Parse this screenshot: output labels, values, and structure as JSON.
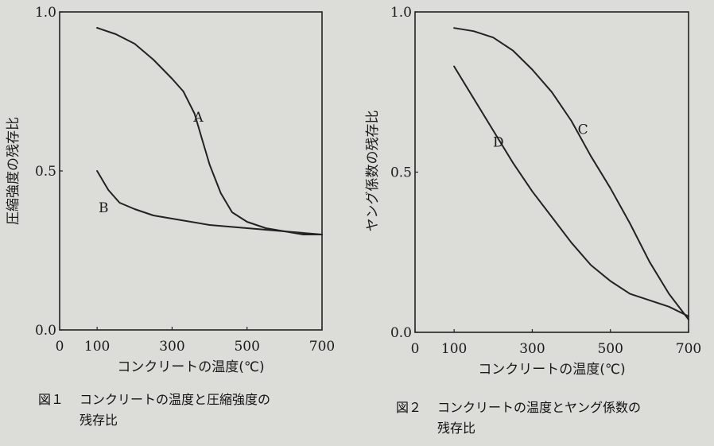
{
  "chart_data": [
    {
      "type": "line",
      "xlabel": "コンクリートの温度(℃)",
      "ylabel": "圧縮強度の残存比",
      "xlim": [
        0,
        700
      ],
      "ylim": [
        0.0,
        1.0
      ],
      "x_ticks": [
        "0",
        "100",
        "300",
        "500",
        "700"
      ],
      "y_ticks": [
        "0.0",
        "0.5",
        "1.0"
      ],
      "grid": false,
      "series": [
        {
          "name": "A",
          "x": [
            100,
            150,
            200,
            250,
            300,
            330,
            360,
            380,
            400,
            430,
            460,
            500,
            550,
            600,
            650,
            700
          ],
          "y": [
            0.95,
            0.93,
            0.9,
            0.85,
            0.79,
            0.75,
            0.68,
            0.6,
            0.52,
            0.43,
            0.37,
            0.34,
            0.32,
            0.31,
            0.3,
            0.3
          ]
        },
        {
          "name": "B",
          "x": [
            100,
            130,
            160,
            200,
            250,
            300,
            400,
            500,
            600,
            700
          ],
          "y": [
            0.5,
            0.44,
            0.4,
            0.38,
            0.36,
            0.35,
            0.33,
            0.32,
            0.31,
            0.3
          ]
        }
      ],
      "caption_num": "図１",
      "caption_line1": "コンクリートの温度と圧縮強度の",
      "caption_line2": "残存比"
    },
    {
      "type": "line",
      "xlabel": "コンクリートの温度(℃)",
      "ylabel": "ヤング係数の残存比",
      "xlim": [
        0,
        700
      ],
      "ylim": [
        0.0,
        1.0
      ],
      "x_ticks": [
        "0",
        "100",
        "300",
        "500",
        "700"
      ],
      "y_ticks": [
        "0.0",
        "0.5",
        "1.0"
      ],
      "grid": false,
      "series": [
        {
          "name": "C",
          "x": [
            100,
            150,
            200,
            250,
            300,
            350,
            400,
            450,
            500,
            550,
            600,
            650,
            700
          ],
          "y": [
            0.95,
            0.94,
            0.92,
            0.88,
            0.82,
            0.75,
            0.66,
            0.55,
            0.45,
            0.34,
            0.22,
            0.12,
            0.04
          ]
        },
        {
          "name": "D",
          "x": [
            100,
            150,
            200,
            250,
            300,
            350,
            400,
            450,
            500,
            550,
            600,
            650,
            700
          ],
          "y": [
            0.83,
            0.73,
            0.63,
            0.53,
            0.44,
            0.36,
            0.28,
            0.21,
            0.16,
            0.12,
            0.1,
            0.08,
            0.05
          ]
        }
      ],
      "caption_num": "図２",
      "caption_line1": "コンクリートの温度とヤング係数の",
      "caption_line2": "残存比"
    }
  ]
}
